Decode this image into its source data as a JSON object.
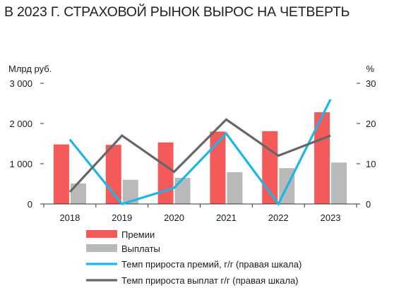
{
  "title": "В 2023 Г. СТРАХОВОЙ РЫНОК ВЫРОС НА ЧЕТВЕРТЬ",
  "chart_data": {
    "type": "bar",
    "categories": [
      "2018",
      "2019",
      "2020",
      "2021",
      "2022",
      "2023"
    ],
    "y_left_label": "Млрд руб.",
    "y_right_label": "%",
    "y_left_ticks": [
      "0",
      "1 000",
      "2 000",
      "3 000"
    ],
    "y_right_ticks": [
      "0",
      "10",
      "20",
      "30"
    ],
    "ylim_left": [
      0,
      3000
    ],
    "ylim_right": [
      0,
      30
    ],
    "grid": false,
    "legend_position": "bottom",
    "series": [
      {
        "name": "Премии",
        "kind": "bar",
        "axis": "left",
        "color": "#f45a5a",
        "values": [
          1480,
          1470,
          1530,
          1800,
          1810,
          2280
        ]
      },
      {
        "name": "Выплаты",
        "kind": "bar",
        "axis": "left",
        "color": "#b9b9b9",
        "values": [
          510,
          600,
          650,
          790,
          890,
          1030
        ]
      },
      {
        "name": "Темп прироста премий, г/г (правая шкала)",
        "kind": "line",
        "axis": "right",
        "color": "#1fb6e6",
        "values": [
          16,
          0,
          4,
          17.5,
          0,
          26
        ]
      },
      {
        "name": "Темп прироста выплат г/г (правая шкала)",
        "kind": "line",
        "axis": "right",
        "color": "#666666",
        "values": [
          3,
          17,
          8,
          21,
          12,
          17
        ]
      }
    ]
  }
}
